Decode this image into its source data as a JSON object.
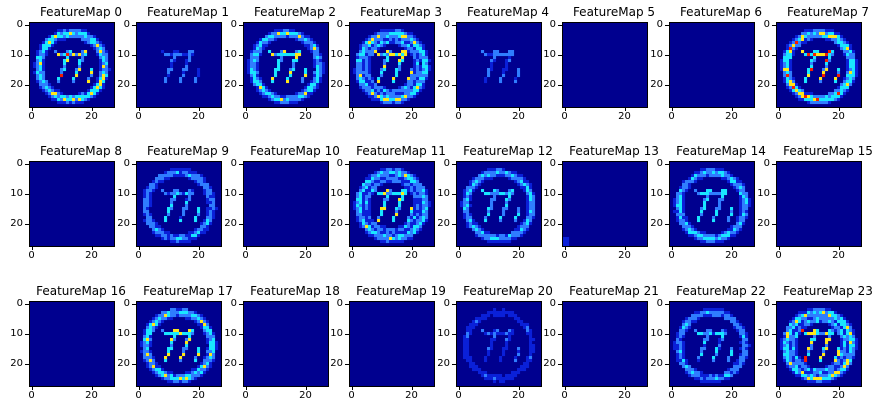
{
  "figure": {
    "axis": {
      "y_ticks": [
        "0",
        "10",
        "20"
      ],
      "x_ticks": [
        "0",
        "20"
      ]
    },
    "colors": {
      "background": "#00008f",
      "cyan": "#19e6ff",
      "light_blue": "#2f7dff",
      "yellow": "#ffe61a",
      "red": "#f51c00",
      "mid_blue": "#0a20d8"
    },
    "panels": [
      {
        "title": "FeatureMap 0",
        "pattern": "ring-digits",
        "strength": 0.85
      },
      {
        "title": "FeatureMap 1",
        "pattern": "faint-digits",
        "strength": 0.45
      },
      {
        "title": "FeatureMap 2",
        "pattern": "ring-digits",
        "strength": 0.75
      },
      {
        "title": "FeatureMap 3",
        "pattern": "double-ring",
        "strength": 0.8
      },
      {
        "title": "FeatureMap 4",
        "pattern": "faint-digits",
        "strength": 0.5
      },
      {
        "title": "FeatureMap 5",
        "pattern": "empty",
        "strength": 0
      },
      {
        "title": "FeatureMap 6",
        "pattern": "empty",
        "strength": 0
      },
      {
        "title": "FeatureMap 7",
        "pattern": "ring-digits",
        "strength": 0.9
      },
      {
        "title": "FeatureMap 8",
        "pattern": "empty",
        "strength": 0
      },
      {
        "title": "FeatureMap 9",
        "pattern": "faint-ring",
        "strength": 0.6
      },
      {
        "title": "FeatureMap 10",
        "pattern": "empty",
        "strength": 0
      },
      {
        "title": "FeatureMap 11",
        "pattern": "double-ring",
        "strength": 0.75
      },
      {
        "title": "FeatureMap 12",
        "pattern": "ring-digits",
        "strength": 0.65
      },
      {
        "title": "FeatureMap 13",
        "pattern": "sparse",
        "strength": 0.2
      },
      {
        "title": "FeatureMap 14",
        "pattern": "ring-digits",
        "strength": 0.7
      },
      {
        "title": "FeatureMap 15",
        "pattern": "empty",
        "strength": 0
      },
      {
        "title": "FeatureMap 16",
        "pattern": "empty",
        "strength": 0
      },
      {
        "title": "FeatureMap 17",
        "pattern": "ring-digits",
        "strength": 0.8
      },
      {
        "title": "FeatureMap 18",
        "pattern": "empty",
        "strength": 0
      },
      {
        "title": "FeatureMap 19",
        "pattern": "empty",
        "strength": 0
      },
      {
        "title": "FeatureMap 20",
        "pattern": "faint-ring",
        "strength": 0.35
      },
      {
        "title": "FeatureMap 21",
        "pattern": "empty",
        "strength": 0
      },
      {
        "title": "FeatureMap 22",
        "pattern": "faint-ring",
        "strength": 0.6
      },
      {
        "title": "FeatureMap 23",
        "pattern": "double-ring",
        "strength": 0.85
      }
    ]
  }
}
